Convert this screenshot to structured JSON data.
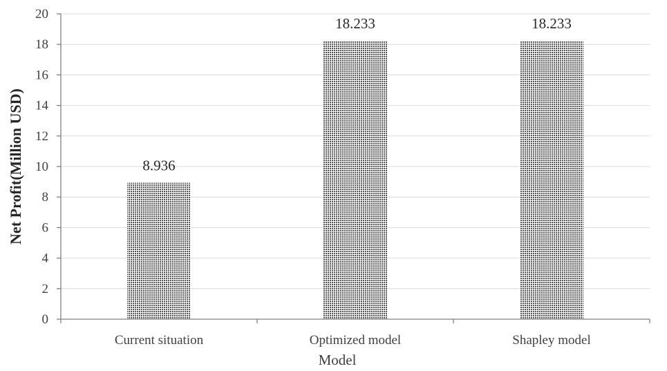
{
  "chart_data": {
    "type": "bar",
    "categories": [
      "Current situation",
      "Optimized model",
      "Shapley model"
    ],
    "values": [
      8.936,
      18.233,
      18.233
    ],
    "data_labels": [
      "8.936",
      "18.233",
      "18.233"
    ],
    "title": "",
    "xlabel": "Model",
    "ylabel": "Net Profit(Million USD)",
    "ylim": [
      0,
      20
    ],
    "yticks": [
      0,
      2,
      4,
      6,
      8,
      10,
      12,
      14,
      16,
      18,
      20
    ],
    "grid": true,
    "legend": "none",
    "colors": {
      "bar_dot": "#555555",
      "bar_bg": "#ffffff",
      "grid": "#d9d9d9",
      "axis": "#7f7f7f"
    }
  }
}
